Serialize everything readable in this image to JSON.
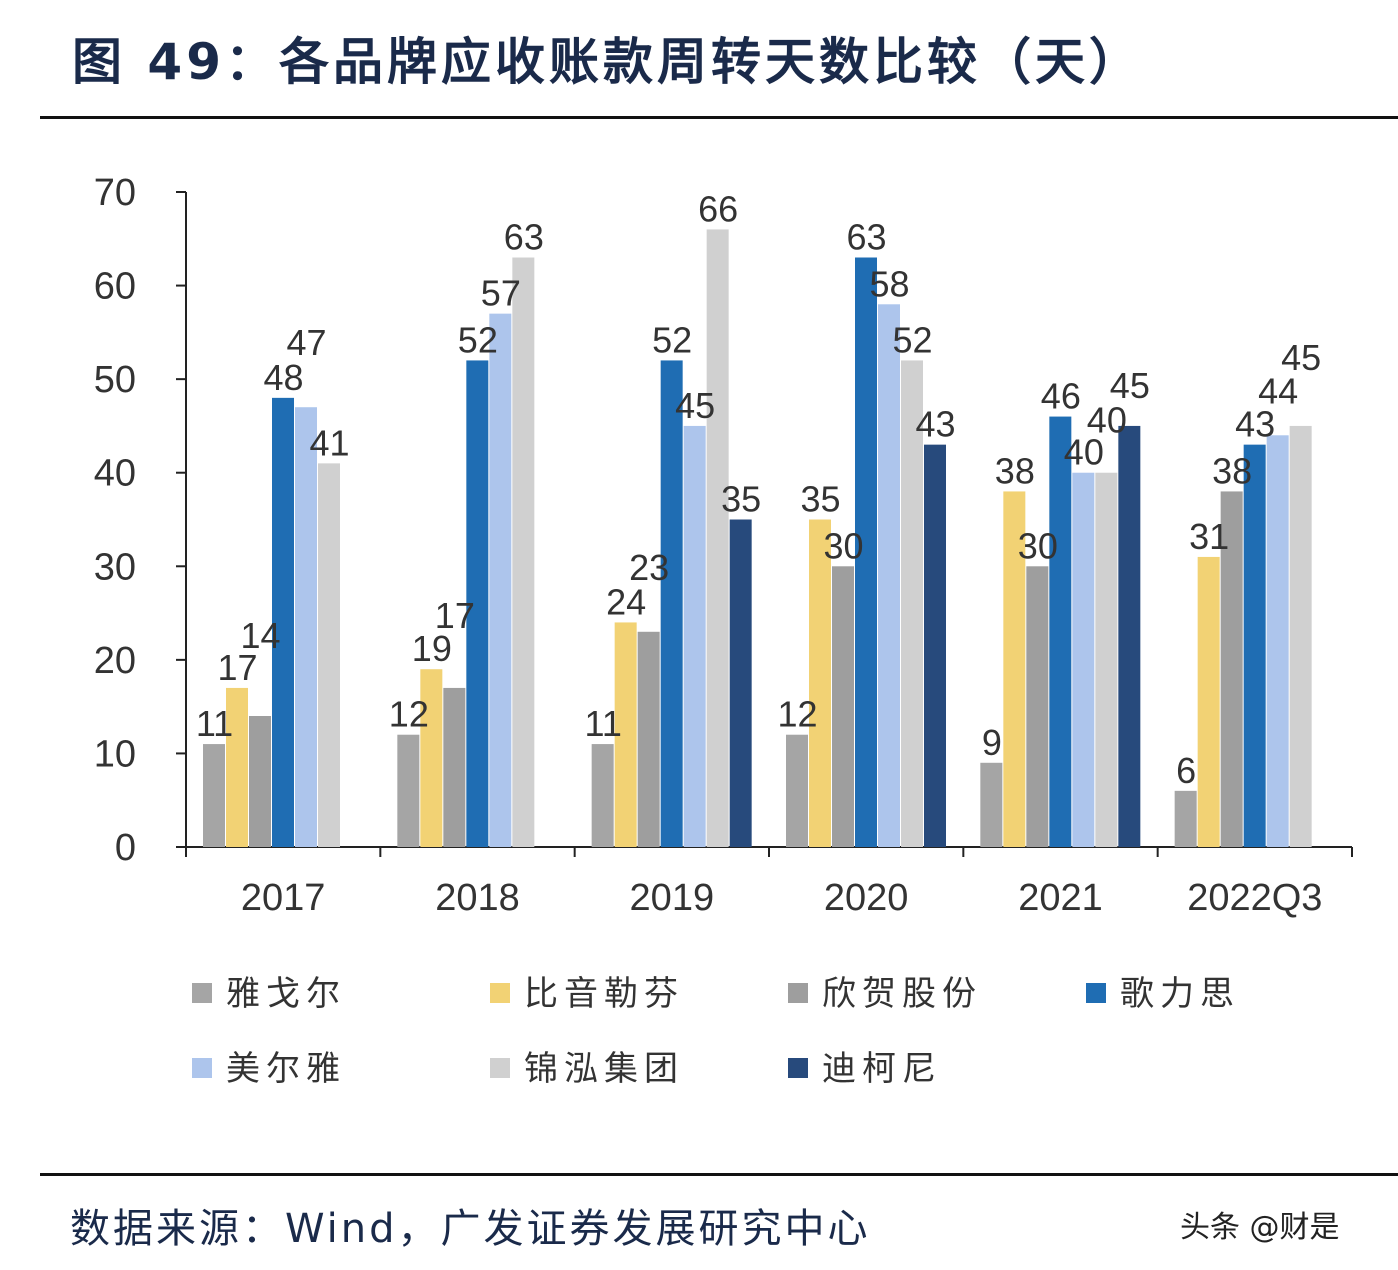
{
  "title": "图 49：各品牌应收账款周转天数比较（天）",
  "source": "数据来源：Wind，广发证券发展研究中心",
  "watermark": "头条 @财是",
  "chart_data": {
    "type": "bar",
    "title": "各品牌应收账款周转天数比较（天）",
    "xlabel": "",
    "ylabel": "",
    "ylim": [
      0,
      70
    ],
    "yticks": [
      0,
      10,
      20,
      30,
      40,
      50,
      60,
      70
    ],
    "grid": false,
    "legend_position": "bottom",
    "categories": [
      "2017",
      "2018",
      "2019",
      "2020",
      "2021",
      "2022Q3"
    ],
    "series": [
      {
        "name": "雅戈尔",
        "color": "#a5a5a5",
        "values": [
          11,
          12,
          11,
          12,
          9,
          6
        ]
      },
      {
        "name": "比音勒芬",
        "color": "#f2d274",
        "values": [
          17,
          19,
          24,
          35,
          38,
          31
        ]
      },
      {
        "name": "欣贺股份",
        "color": "#9e9e9e",
        "values": [
          14,
          17,
          23,
          30,
          30,
          38
        ]
      },
      {
        "name": "歌力思",
        "color": "#1f6db3",
        "values": [
          48,
          52,
          52,
          63,
          46,
          43
        ]
      },
      {
        "name": "美尔雅",
        "color": "#adc5ec",
        "values": [
          47,
          57,
          45,
          58,
          40,
          44
        ]
      },
      {
        "name": "锦泓集团",
        "color": "#d0d0d0",
        "values": [
          41,
          63,
          66,
          52,
          40,
          45
        ]
      },
      {
        "name": "迪柯尼",
        "color": "#274a7c",
        "values": [
          null,
          null,
          35,
          43,
          45,
          null
        ]
      }
    ]
  }
}
